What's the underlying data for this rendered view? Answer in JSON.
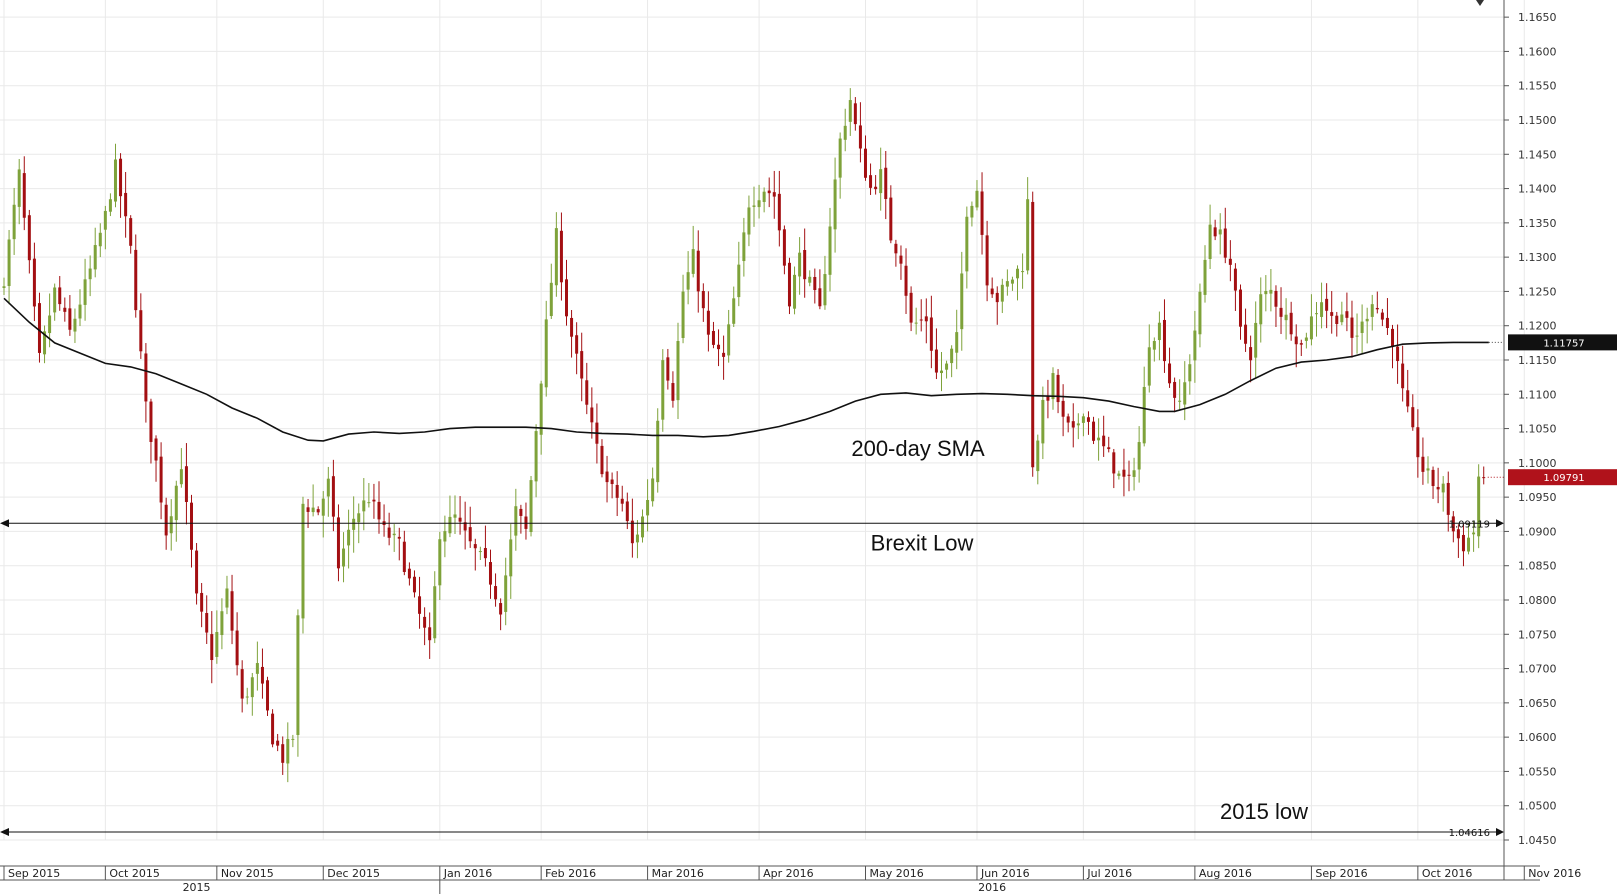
{
  "chart_data": {
    "type": "candlestick",
    "title": "",
    "colors": {
      "up": "#7ea23a",
      "down": "#a30f12",
      "sma": "#111111",
      "grid": "#e9e9e9",
      "axis": "#555555",
      "price_flag": "#b0121b",
      "sma_flag": "#111111"
    },
    "y_axis": {
      "min": 1.045,
      "max": 1.1675,
      "step": 0.005,
      "position": "right",
      "tick_labels": [
        "1.1650",
        "1.1600",
        "1.1550",
        "1.1500",
        "1.1450",
        "1.1400",
        "1.1350",
        "1.1300",
        "1.1250",
        "1.1200",
        "1.1150",
        "1.1100",
        "1.1050",
        "1.1000",
        "1.0950",
        "1.0900",
        "1.0850",
        "1.0800",
        "1.0750",
        "1.0700",
        "1.0650",
        "1.0600",
        "1.0550",
        "1.0500",
        "1.0450"
      ]
    },
    "x_axis": {
      "months": [
        {
          "label": "Sep 2015",
          "day": 0
        },
        {
          "label": "Oct 2015",
          "day": 20
        },
        {
          "label": "Nov 2015",
          "day": 42
        },
        {
          "label": "Dec 2015",
          "day": 63
        },
        {
          "label": "Jan 2016",
          "day": 86
        },
        {
          "label": "Feb 2016",
          "day": 106
        },
        {
          "label": "Mar 2016",
          "day": 127
        },
        {
          "label": "Apr 2016",
          "day": 149
        },
        {
          "label": "May 2016",
          "day": 170
        },
        {
          "label": "Jun 2016",
          "day": 192
        },
        {
          "label": "Jul 2016",
          "day": 213
        },
        {
          "label": "Aug 2016",
          "day": 235
        },
        {
          "label": "Sep 2016",
          "day": 258
        },
        {
          "label": "Oct 2016",
          "day": 279
        },
        {
          "label": "Nov 2016",
          "day": 300
        }
      ],
      "years": [
        {
          "label": "2015",
          "day": 38
        },
        {
          "label": "2016",
          "day": 195
        }
      ]
    },
    "close_anchors": [
      [
        0,
        1.127
      ],
      [
        3,
        1.142
      ],
      [
        7,
        1.115
      ],
      [
        10,
        1.125
      ],
      [
        13,
        1.119
      ],
      [
        17,
        1.128
      ],
      [
        20,
        1.136
      ],
      [
        22,
        1.143
      ],
      [
        25,
        1.131
      ],
      [
        28,
        1.108
      ],
      [
        30,
        1.1
      ],
      [
        32,
        1.09
      ],
      [
        35,
        1.1
      ],
      [
        38,
        1.08
      ],
      [
        41,
        1.072
      ],
      [
        44,
        1.081
      ],
      [
        47,
        1.065
      ],
      [
        50,
        1.07
      ],
      [
        53,
        1.06
      ],
      [
        55,
        1.057
      ],
      [
        57,
        1.06
      ],
      [
        59,
        1.094
      ],
      [
        62,
        1.093
      ],
      [
        64,
        1.097
      ],
      [
        66,
        1.085
      ],
      [
        69,
        1.092
      ],
      [
        72,
        1.095
      ],
      [
        75,
        1.09
      ],
      [
        78,
        1.088
      ],
      [
        81,
        1.08
      ],
      [
        84,
        1.073
      ],
      [
        86,
        1.09
      ],
      [
        89,
        1.092
      ],
      [
        92,
        1.088
      ],
      [
        95,
        1.085
      ],
      [
        98,
        1.079
      ],
      [
        101,
        1.093
      ],
      [
        103,
        1.09
      ],
      [
        105,
        1.105
      ],
      [
        107,
        1.12
      ],
      [
        109,
        1.133
      ],
      [
        111,
        1.122
      ],
      [
        113,
        1.115
      ],
      [
        115,
        1.108
      ],
      [
        117,
        1.102
      ],
      [
        119,
        1.097
      ],
      [
        122,
        1.094
      ],
      [
        124,
        1.088
      ],
      [
        126,
        1.092
      ],
      [
        128,
        1.098
      ],
      [
        130,
        1.116
      ],
      [
        132,
        1.11
      ],
      [
        134,
        1.125
      ],
      [
        136,
        1.13
      ],
      [
        139,
        1.118
      ],
      [
        142,
        1.115
      ],
      [
        145,
        1.128
      ],
      [
        147,
        1.138
      ],
      [
        150,
        1.14
      ],
      [
        152,
        1.139
      ],
      [
        155,
        1.124
      ],
      [
        157,
        1.13
      ],
      [
        159,
        1.126
      ],
      [
        161,
        1.122
      ],
      [
        163,
        1.135
      ],
      [
        165,
        1.147
      ],
      [
        167,
        1.153
      ],
      [
        169,
        1.145
      ],
      [
        171,
        1.14
      ],
      [
        173,
        1.142
      ],
      [
        175,
        1.133
      ],
      [
        177,
        1.13
      ],
      [
        179,
        1.12
      ],
      [
        182,
        1.121
      ],
      [
        184,
        1.113
      ],
      [
        186,
        1.114
      ],
      [
        188,
        1.118
      ],
      [
        190,
        1.137
      ],
      [
        192,
        1.14
      ],
      [
        194,
        1.127
      ],
      [
        196,
        1.124
      ],
      [
        198,
        1.126
      ],
      [
        201,
        1.129
      ],
      [
        202,
        1.138
      ],
      [
        203,
        1.1
      ],
      [
        205,
        1.108
      ],
      [
        207,
        1.112
      ],
      [
        209,
        1.106
      ],
      [
        211,
        1.104
      ],
      [
        213,
        1.108
      ],
      [
        215,
        1.104
      ],
      [
        218,
        1.101
      ],
      [
        220,
        1.098
      ],
      [
        222,
        1.097
      ],
      [
        224,
        1.103
      ],
      [
        226,
        1.118
      ],
      [
        228,
        1.12
      ],
      [
        230,
        1.112
      ],
      [
        232,
        1.108
      ],
      [
        234,
        1.115
      ],
      [
        236,
        1.124
      ],
      [
        238,
        1.135
      ],
      [
        240,
        1.133
      ],
      [
        242,
        1.129
      ],
      [
        244,
        1.119
      ],
      [
        246,
        1.116
      ],
      [
        248,
        1.124
      ],
      [
        250,
        1.125
      ],
      [
        252,
        1.122
      ],
      [
        254,
        1.12
      ],
      [
        256,
        1.117
      ],
      [
        258,
        1.121
      ],
      [
        260,
        1.124
      ],
      [
        262,
        1.121
      ],
      [
        264,
        1.122
      ],
      [
        266,
        1.118
      ],
      [
        268,
        1.12
      ],
      [
        270,
        1.124
      ],
      [
        272,
        1.121
      ],
      [
        274,
        1.118
      ],
      [
        276,
        1.11
      ],
      [
        278,
        1.104
      ],
      [
        280,
        1.099
      ],
      [
        282,
        1.097
      ],
      [
        284,
        1.096
      ],
      [
        286,
        1.09
      ],
      [
        288,
        1.088
      ],
      [
        290,
        1.09
      ],
      [
        291,
        1.098
      ],
      [
        292,
        1.0979
      ]
    ],
    "sma_anchors": [
      [
        0,
        1.124
      ],
      [
        5,
        1.1205
      ],
      [
        10,
        1.1175
      ],
      [
        15,
        1.116
      ],
      [
        20,
        1.1145
      ],
      [
        25,
        1.114
      ],
      [
        30,
        1.113
      ],
      [
        35,
        1.1115
      ],
      [
        40,
        1.11
      ],
      [
        45,
        1.108
      ],
      [
        50,
        1.1065
      ],
      [
        55,
        1.1045
      ],
      [
        60,
        1.1033
      ],
      [
        63,
        1.1032
      ],
      [
        68,
        1.1042
      ],
      [
        73,
        1.1045
      ],
      [
        78,
        1.1043
      ],
      [
        83,
        1.1045
      ],
      [
        88,
        1.105
      ],
      [
        93,
        1.1052
      ],
      [
        98,
        1.1052
      ],
      [
        103,
        1.1052
      ],
      [
        108,
        1.105
      ],
      [
        113,
        1.1045
      ],
      [
        118,
        1.1043
      ],
      [
        123,
        1.1042
      ],
      [
        128,
        1.104
      ],
      [
        133,
        1.104
      ],
      [
        138,
        1.1038
      ],
      [
        143,
        1.104
      ],
      [
        148,
        1.1046
      ],
      [
        153,
        1.1053
      ],
      [
        158,
        1.1063
      ],
      [
        163,
        1.1075
      ],
      [
        168,
        1.109
      ],
      [
        173,
        1.11
      ],
      [
        178,
        1.1102
      ],
      [
        183,
        1.1098
      ],
      [
        188,
        1.11
      ],
      [
        193,
        1.1101
      ],
      [
        198,
        1.11
      ],
      [
        203,
        1.1098
      ],
      [
        208,
        1.1097
      ],
      [
        213,
        1.1095
      ],
      [
        218,
        1.109
      ],
      [
        223,
        1.1082
      ],
      [
        228,
        1.1075
      ],
      [
        231,
        1.1075
      ],
      [
        236,
        1.1085
      ],
      [
        241,
        1.11
      ],
      [
        246,
        1.112
      ],
      [
        251,
        1.1138
      ],
      [
        256,
        1.1147
      ],
      [
        261,
        1.115
      ],
      [
        266,
        1.1155
      ],
      [
        271,
        1.1165
      ],
      [
        276,
        1.1173
      ],
      [
        281,
        1.1175
      ],
      [
        286,
        1.11757
      ],
      [
        293,
        1.11757
      ]
    ],
    "price_line": {
      "value": 1.09791,
      "label": "1.09791"
    },
    "sma_line": {
      "value": 1.11757,
      "label": "1.11757"
    },
    "horizontal_lines": [
      {
        "value": 1.09119,
        "label": "1.09119",
        "caption": "Brexit Low"
      },
      {
        "value": 1.04616,
        "label": "1.04616",
        "caption": "2015 low"
      }
    ],
    "annotations": [
      {
        "text": "200-day SMA"
      }
    ],
    "grid": true,
    "legend": "none"
  }
}
